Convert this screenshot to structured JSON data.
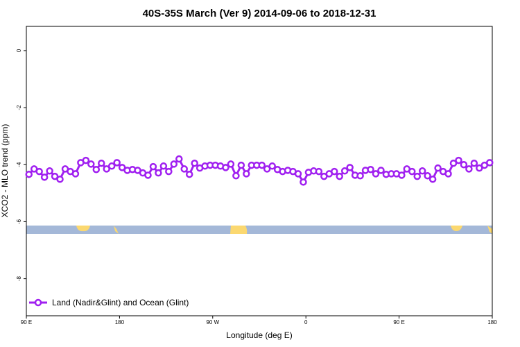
{
  "chart_data": {
    "type": "line",
    "title": "40S-35S March (Ver 9)   2014-09-06 to 2018-12-31",
    "x_label": "Longitude (deg E)",
    "y_label": "XCO2 - MLO trend (ppm)",
    "xlim": [
      90,
      540
    ],
    "xticks": [
      {
        "value": 90,
        "label": "90 E"
      },
      180,
      {
        "value": 270,
        "label": "90 W"
      },
      {
        "value": 360,
        "label": "0"
      },
      {
        "value": 450,
        "label": "90 E"
      },
      {
        "value": 540,
        "label": "180"
      }
    ],
    "ylim": [
      -9.3,
      0.85
    ],
    "yticks": [
      0,
      -2,
      -4,
      -6,
      -8
    ],
    "legend": "bottom-left",
    "x": [
      92.5,
      97.5,
      102.5,
      107.5,
      112.5,
      117.5,
      122.5,
      127.5,
      132.5,
      137.5,
      142.5,
      147.5,
      152.5,
      157.5,
      162.5,
      167.5,
      172.5,
      177.5,
      182.5,
      187.5,
      192.5,
      197.5,
      202.5,
      207.5,
      212.5,
      217.5,
      222.5,
      227.5,
      232.5,
      237.5,
      242.5,
      247.5,
      252.5,
      257.5,
      262.5,
      267.5,
      272.5,
      277.5,
      282.5,
      287.5,
      292.5,
      297.5,
      302.5,
      307.5,
      312.5,
      317.5,
      322.5,
      327.5,
      332.5,
      337.5,
      342.5,
      347.5,
      352.5,
      357.5,
      362.5,
      367.5,
      372.5,
      377.5,
      382.5,
      387.5,
      392.5,
      397.5,
      402.5,
      407.5,
      412.5,
      417.5,
      422.5,
      427.5,
      432.5,
      437.5,
      442.5,
      447.5,
      452.5,
      457.5,
      462.5,
      467.5,
      472.5,
      477.5,
      482.5,
      487.5,
      492.5,
      497.5,
      502.5,
      507.5,
      512.5,
      517.5,
      522.5,
      527.5,
      532.5,
      537.5
    ],
    "series": [
      {
        "name": "Land (Nadir&Glint) and Ocean (Glint)",
        "color": "#a020f0",
        "values": [
          -4.34,
          -4.15,
          -4.24,
          -4.44,
          -4.22,
          -4.41,
          -4.51,
          -4.15,
          -4.24,
          -4.32,
          -3.93,
          -3.85,
          -3.98,
          -4.17,
          -3.95,
          -4.15,
          -4.05,
          -3.93,
          -4.1,
          -4.2,
          -4.17,
          -4.2,
          -4.29,
          -4.37,
          -4.07,
          -4.29,
          -4.05,
          -4.24,
          -3.98,
          -3.8,
          -4.15,
          -4.34,
          -3.95,
          -4.12,
          -4.05,
          -4.02,
          -4.02,
          -4.05,
          -4.1,
          -3.98,
          -4.39,
          -4.02,
          -4.32,
          -4.02,
          -4.02,
          -4.02,
          -4.15,
          -4.05,
          -4.17,
          -4.24,
          -4.2,
          -4.24,
          -4.32,
          -4.61,
          -4.27,
          -4.22,
          -4.24,
          -4.41,
          -4.32,
          -4.24,
          -4.41,
          -4.22,
          -4.1,
          -4.37,
          -4.39,
          -4.2,
          -4.17,
          -4.32,
          -4.2,
          -4.34,
          -4.32,
          -4.32,
          -4.37,
          -4.15,
          -4.24,
          -4.41,
          -4.22,
          -4.39,
          -4.51,
          -4.12,
          -4.24,
          -4.32,
          -3.95,
          -3.85,
          -4.0,
          -4.15,
          -3.95,
          -4.12,
          -4.02,
          -3.93
        ]
      }
    ]
  }
}
